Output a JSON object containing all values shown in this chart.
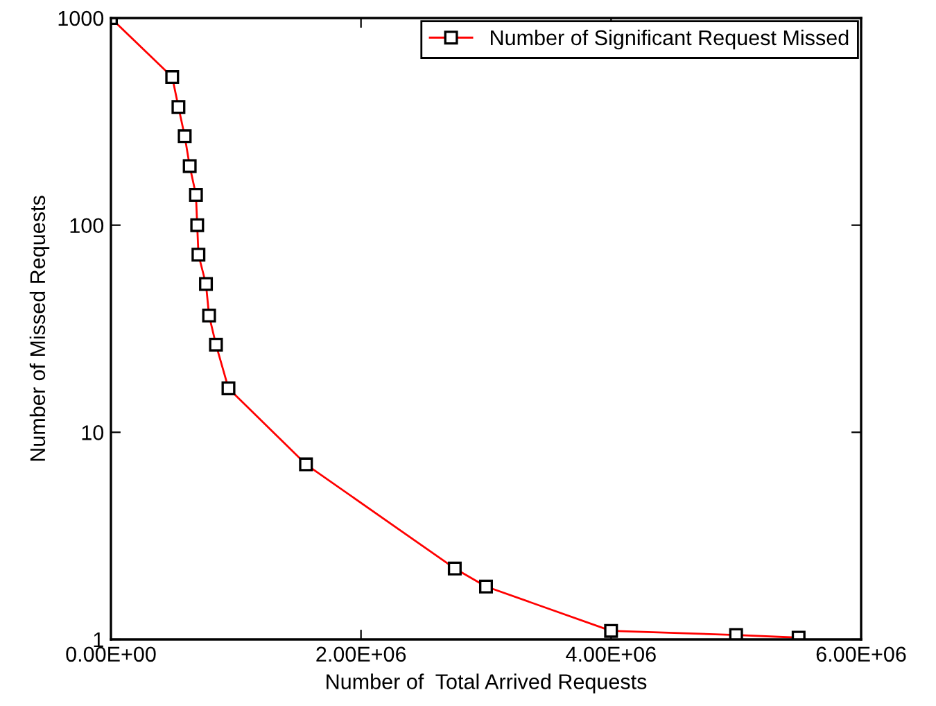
{
  "chart_data": {
    "type": "line",
    "xlabel": "Number of  Total Arrived Requests",
    "ylabel": "Number of Missed Requests",
    "x": [
      0,
      490000,
      540000,
      590000,
      630000,
      680000,
      690000,
      700000,
      760000,
      785000,
      840000,
      940000,
      1560000,
      2750000,
      3000000,
      4000000,
      5000000,
      5500000
    ],
    "series": [
      {
        "name": "Number of Significant Request Missed",
        "color": "#ff0000",
        "values": [
          1000,
          519,
          372,
          269,
          193,
          140,
          100,
          72,
          52,
          36.6,
          26.5,
          16.3,
          7.0,
          2.2,
          1.8,
          1.1,
          1.05,
          1.02
        ]
      }
    ],
    "xlim": [
      0,
      6000000
    ],
    "ylim": [
      1,
      1000
    ],
    "log": "y",
    "xticks": [
      {
        "value": 0,
        "label": "0.00E+00"
      },
      {
        "value": 2000000,
        "label": "2.00E+06"
      },
      {
        "value": 4000000,
        "label": "4.00E+06"
      },
      {
        "value": 6000000,
        "label": "6.00E+06"
      }
    ],
    "yticks": [
      1,
      10,
      100,
      1000
    ],
    "marker": "square",
    "line_style": "solid",
    "grid": false,
    "legend": "top right"
  }
}
